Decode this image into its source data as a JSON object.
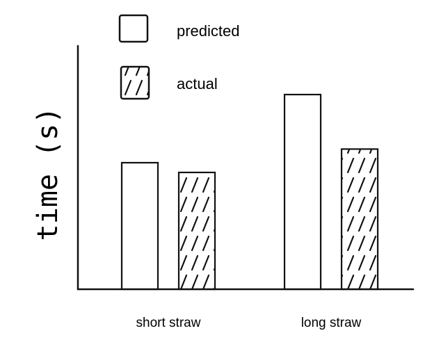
{
  "chart_data": {
    "type": "bar",
    "categories": [
      "short straw",
      "long straw"
    ],
    "series": [
      {
        "name": "predicted",
        "values": [
          0.65,
          1.0
        ]
      },
      {
        "name": "actual",
        "values": [
          0.6,
          0.72
        ]
      }
    ],
    "xlabel": "",
    "ylabel": "time (s)",
    "ylim": [
      0,
      1.25
    ],
    "grid": false,
    "legend": {
      "position": "top-left",
      "entries": [
        "predicted",
        "actual"
      ]
    },
    "style": {
      "predicted_fill": "none",
      "actual_fill": "hatched",
      "ink_color": "#111111"
    }
  }
}
